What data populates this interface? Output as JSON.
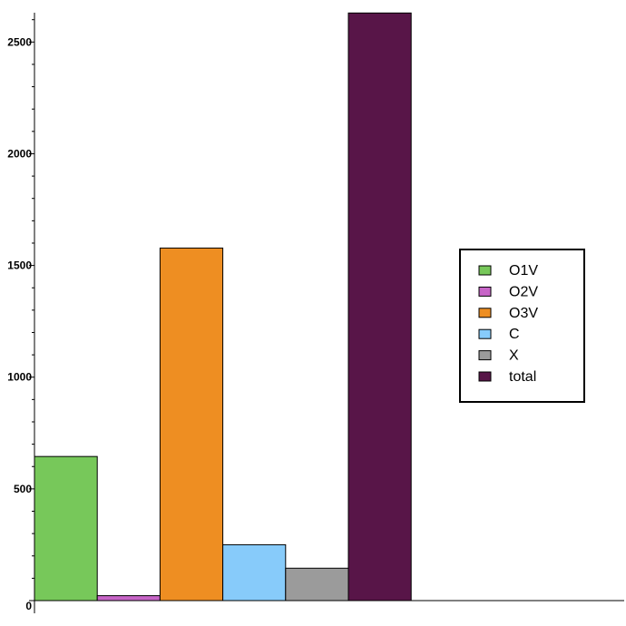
{
  "chart_data": {
    "type": "bar",
    "title": "",
    "xlabel": "",
    "ylabel": "",
    "categories": [
      "O1V",
      "O2V",
      "O3V",
      "C",
      "X",
      "total"
    ],
    "values": [
      645,
      22,
      1578,
      250,
      145,
      2630
    ],
    "colors": [
      "#77C85A",
      "#C765C7",
      "#EE8E22",
      "#87CBFA",
      "#9B9B9B",
      "#581548"
    ],
    "ylim": [
      0,
      2680
    ],
    "yticks": [
      0,
      500,
      1000,
      1500,
      2000,
      2500
    ],
    "ytick_labels": [
      "0",
      "500",
      "1000",
      "1500",
      "2000",
      "2500"
    ],
    "minor_tick_step": 100,
    "grid": false,
    "legend_position": "right"
  }
}
